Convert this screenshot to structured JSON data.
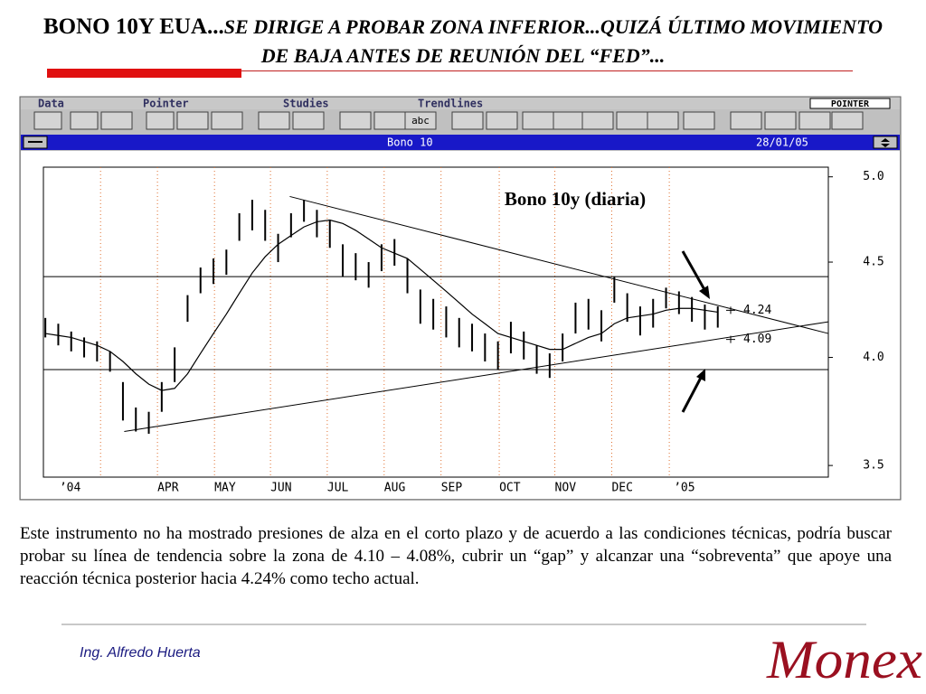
{
  "header": {
    "title_lead": "BONO 10Y EUA...",
    "title_rest": "SE DIRIGE A PROBAR ZONA INFERIOR...QUIZÁ ÚLTIMO MOVIMIENTO DE BAJA ANTES DE REUNIÓN DEL “FED”..."
  },
  "window": {
    "menu": [
      "Data",
      "Pointer",
      "Studies",
      "Trendlines"
    ],
    "mode": "POINTER",
    "button_abc": "abc",
    "window_title": "Bono 10",
    "date": "28/01/05"
  },
  "chart_data": {
    "type": "hl_bars",
    "title": "Bono 10y (diaria)",
    "log_scale": true,
    "x": [
      0,
      1,
      2,
      3,
      4,
      5,
      6,
      7,
      8,
      9,
      10,
      11,
      12,
      13,
      14,
      15,
      16,
      17,
      18,
      19,
      20,
      21,
      22,
      23,
      24,
      25,
      26,
      27,
      28,
      29,
      30,
      31,
      32,
      33,
      34,
      35,
      36,
      37,
      38,
      39,
      40,
      41,
      42,
      43,
      44,
      45,
      46,
      47,
      48,
      49,
      50,
      51,
      52
    ],
    "high": [
      4.2,
      4.17,
      4.13,
      4.1,
      4.08,
      4.03,
      3.88,
      3.76,
      3.74,
      3.88,
      4.05,
      4.32,
      4.47,
      4.52,
      4.57,
      4.78,
      4.86,
      4.8,
      4.66,
      4.78,
      4.86,
      4.8,
      4.74,
      4.6,
      4.55,
      4.5,
      4.6,
      4.63,
      4.52,
      4.35,
      4.3,
      4.26,
      4.2,
      4.17,
      4.12,
      4.08,
      4.18,
      4.13,
      4.06,
      4.02,
      4.12,
      4.28,
      4.3,
      4.24,
      4.42,
      4.33,
      4.26,
      4.3,
      4.36,
      4.34,
      4.31,
      4.27,
      4.26
    ],
    "low": [
      4.1,
      4.06,
      4.03,
      4.0,
      3.98,
      3.93,
      3.7,
      3.65,
      3.64,
      3.74,
      3.88,
      4.18,
      4.33,
      4.38,
      4.43,
      4.62,
      4.68,
      4.62,
      4.5,
      4.64,
      4.73,
      4.64,
      4.58,
      4.42,
      4.4,
      4.36,
      4.45,
      4.48,
      4.33,
      4.17,
      4.14,
      4.1,
      4.05,
      4.03,
      3.98,
      3.94,
      4.02,
      3.99,
      3.92,
      3.9,
      3.98,
      4.12,
      4.14,
      4.08,
      4.28,
      4.18,
      4.11,
      4.15,
      4.25,
      4.22,
      4.18,
      4.14,
      4.15
    ],
    "moving_average": [
      4.12,
      4.11,
      4.1,
      4.08,
      4.06,
      4.03,
      3.98,
      3.92,
      3.87,
      3.84,
      3.85,
      3.92,
      4.02,
      4.12,
      4.22,
      4.33,
      4.44,
      4.53,
      4.6,
      4.65,
      4.7,
      4.73,
      4.74,
      4.72,
      4.68,
      4.63,
      4.58,
      4.55,
      4.52,
      4.46,
      4.4,
      4.34,
      4.28,
      4.22,
      4.17,
      4.12,
      4.1,
      4.08,
      4.06,
      4.04,
      4.04,
      4.07,
      4.1,
      4.12,
      4.17,
      4.2,
      4.21,
      4.22,
      4.24,
      4.25,
      4.25,
      4.24,
      4.23
    ],
    "color": "#000000",
    "xlim": [
      -0.15,
      60.55
    ],
    "xticks": [
      {
        "value": 1.1,
        "label": "’04"
      },
      {
        "value": 8.67,
        "label": "APR"
      },
      {
        "value": 13.08,
        "label": "MAY"
      },
      {
        "value": 17.41,
        "label": "JUN"
      },
      {
        "value": 21.8,
        "label": "JUL"
      },
      {
        "value": 26.2,
        "label": "AUG"
      },
      {
        "value": 30.6,
        "label": "SEP"
      },
      {
        "value": 35.1,
        "label": "OCT"
      },
      {
        "value": 39.4,
        "label": "NOV"
      },
      {
        "value": 43.8,
        "label": "DEC"
      },
      {
        "value": 48.6,
        "label": "’05"
      }
    ],
    "vgrid": [
      4.27,
      8.67,
      13.08,
      17.41,
      21.8,
      26.2,
      30.6,
      35.1,
      39.4,
      43.8,
      48.25
    ],
    "ylim": [
      3.45,
      5.06
    ],
    "yticks": [
      {
        "value": 5.0,
        "label": "5.0"
      },
      {
        "value": 4.5,
        "label": "4.5"
      },
      {
        "value": 4.0,
        "label": "4.0"
      },
      {
        "value": 3.5,
        "label": "3.5"
      }
    ],
    "hlines": [
      4.42,
      3.94
    ],
    "trendlines": [
      {
        "x": [
          18.9,
          60.55
        ],
        "y": [
          4.88,
          4.12
        ]
      },
      {
        "x": [
          6.1,
          60.55
        ],
        "y": [
          3.65,
          4.18
        ]
      }
    ],
    "level_labels": [
      4.24,
      4.09
    ]
  },
  "body": {
    "paragraph": "Este instrumento no ha mostrado presiones de alza en el corto plazo y de acuerdo a las condiciones técnicas, podría buscar probar su línea de tendencia sobre la zona de 4.10 – 4.08%, cubrir un “gap” y alcanzar una “sobreventa” que apoye una reacción técnica posterior hacia 4.24% como techo actual."
  },
  "footer": {
    "author": "Ing. Alfredo Huerta",
    "logo": "Monex"
  }
}
